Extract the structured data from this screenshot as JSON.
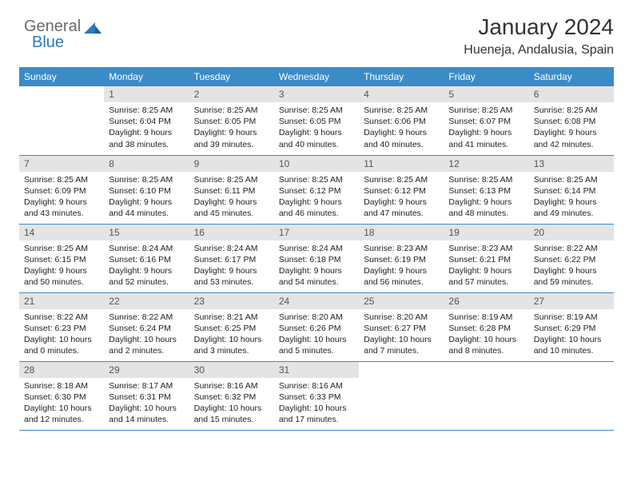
{
  "logo": {
    "general": "General",
    "blue": "Blue"
  },
  "header": {
    "title": "January 2024",
    "location": "Hueneja, Andalusia, Spain"
  },
  "dayNames": [
    "Sunday",
    "Monday",
    "Tuesday",
    "Wednesday",
    "Thursday",
    "Friday",
    "Saturday"
  ],
  "colors": {
    "headerBg": "#3b8bc6",
    "headerText": "#ffffff",
    "dayNumBg": "#e4e4e4",
    "ruleColor": "#3b8bc6",
    "logoBlue": "#2a7ab8",
    "logoGray": "#6b6b6b"
  },
  "weeks": [
    [
      {
        "n": "",
        "sunrise": "",
        "sunset": "",
        "daylight": ""
      },
      {
        "n": "1",
        "sunrise": "Sunrise: 8:25 AM",
        "sunset": "Sunset: 6:04 PM",
        "daylight": "Daylight: 9 hours and 38 minutes."
      },
      {
        "n": "2",
        "sunrise": "Sunrise: 8:25 AM",
        "sunset": "Sunset: 6:05 PM",
        "daylight": "Daylight: 9 hours and 39 minutes."
      },
      {
        "n": "3",
        "sunrise": "Sunrise: 8:25 AM",
        "sunset": "Sunset: 6:05 PM",
        "daylight": "Daylight: 9 hours and 40 minutes."
      },
      {
        "n": "4",
        "sunrise": "Sunrise: 8:25 AM",
        "sunset": "Sunset: 6:06 PM",
        "daylight": "Daylight: 9 hours and 40 minutes."
      },
      {
        "n": "5",
        "sunrise": "Sunrise: 8:25 AM",
        "sunset": "Sunset: 6:07 PM",
        "daylight": "Daylight: 9 hours and 41 minutes."
      },
      {
        "n": "6",
        "sunrise": "Sunrise: 8:25 AM",
        "sunset": "Sunset: 6:08 PM",
        "daylight": "Daylight: 9 hours and 42 minutes."
      }
    ],
    [
      {
        "n": "7",
        "sunrise": "Sunrise: 8:25 AM",
        "sunset": "Sunset: 6:09 PM",
        "daylight": "Daylight: 9 hours and 43 minutes."
      },
      {
        "n": "8",
        "sunrise": "Sunrise: 8:25 AM",
        "sunset": "Sunset: 6:10 PM",
        "daylight": "Daylight: 9 hours and 44 minutes."
      },
      {
        "n": "9",
        "sunrise": "Sunrise: 8:25 AM",
        "sunset": "Sunset: 6:11 PM",
        "daylight": "Daylight: 9 hours and 45 minutes."
      },
      {
        "n": "10",
        "sunrise": "Sunrise: 8:25 AM",
        "sunset": "Sunset: 6:12 PM",
        "daylight": "Daylight: 9 hours and 46 minutes."
      },
      {
        "n": "11",
        "sunrise": "Sunrise: 8:25 AM",
        "sunset": "Sunset: 6:12 PM",
        "daylight": "Daylight: 9 hours and 47 minutes."
      },
      {
        "n": "12",
        "sunrise": "Sunrise: 8:25 AM",
        "sunset": "Sunset: 6:13 PM",
        "daylight": "Daylight: 9 hours and 48 minutes."
      },
      {
        "n": "13",
        "sunrise": "Sunrise: 8:25 AM",
        "sunset": "Sunset: 6:14 PM",
        "daylight": "Daylight: 9 hours and 49 minutes."
      }
    ],
    [
      {
        "n": "14",
        "sunrise": "Sunrise: 8:25 AM",
        "sunset": "Sunset: 6:15 PM",
        "daylight": "Daylight: 9 hours and 50 minutes."
      },
      {
        "n": "15",
        "sunrise": "Sunrise: 8:24 AM",
        "sunset": "Sunset: 6:16 PM",
        "daylight": "Daylight: 9 hours and 52 minutes."
      },
      {
        "n": "16",
        "sunrise": "Sunrise: 8:24 AM",
        "sunset": "Sunset: 6:17 PM",
        "daylight": "Daylight: 9 hours and 53 minutes."
      },
      {
        "n": "17",
        "sunrise": "Sunrise: 8:24 AM",
        "sunset": "Sunset: 6:18 PM",
        "daylight": "Daylight: 9 hours and 54 minutes."
      },
      {
        "n": "18",
        "sunrise": "Sunrise: 8:23 AM",
        "sunset": "Sunset: 6:19 PM",
        "daylight": "Daylight: 9 hours and 56 minutes."
      },
      {
        "n": "19",
        "sunrise": "Sunrise: 8:23 AM",
        "sunset": "Sunset: 6:21 PM",
        "daylight": "Daylight: 9 hours and 57 minutes."
      },
      {
        "n": "20",
        "sunrise": "Sunrise: 8:22 AM",
        "sunset": "Sunset: 6:22 PM",
        "daylight": "Daylight: 9 hours and 59 minutes."
      }
    ],
    [
      {
        "n": "21",
        "sunrise": "Sunrise: 8:22 AM",
        "sunset": "Sunset: 6:23 PM",
        "daylight": "Daylight: 10 hours and 0 minutes."
      },
      {
        "n": "22",
        "sunrise": "Sunrise: 8:22 AM",
        "sunset": "Sunset: 6:24 PM",
        "daylight": "Daylight: 10 hours and 2 minutes."
      },
      {
        "n": "23",
        "sunrise": "Sunrise: 8:21 AM",
        "sunset": "Sunset: 6:25 PM",
        "daylight": "Daylight: 10 hours and 3 minutes."
      },
      {
        "n": "24",
        "sunrise": "Sunrise: 8:20 AM",
        "sunset": "Sunset: 6:26 PM",
        "daylight": "Daylight: 10 hours and 5 minutes."
      },
      {
        "n": "25",
        "sunrise": "Sunrise: 8:20 AM",
        "sunset": "Sunset: 6:27 PM",
        "daylight": "Daylight: 10 hours and 7 minutes."
      },
      {
        "n": "26",
        "sunrise": "Sunrise: 8:19 AM",
        "sunset": "Sunset: 6:28 PM",
        "daylight": "Daylight: 10 hours and 8 minutes."
      },
      {
        "n": "27",
        "sunrise": "Sunrise: 8:19 AM",
        "sunset": "Sunset: 6:29 PM",
        "daylight": "Daylight: 10 hours and 10 minutes."
      }
    ],
    [
      {
        "n": "28",
        "sunrise": "Sunrise: 8:18 AM",
        "sunset": "Sunset: 6:30 PM",
        "daylight": "Daylight: 10 hours and 12 minutes."
      },
      {
        "n": "29",
        "sunrise": "Sunrise: 8:17 AM",
        "sunset": "Sunset: 6:31 PM",
        "daylight": "Daylight: 10 hours and 14 minutes."
      },
      {
        "n": "30",
        "sunrise": "Sunrise: 8:16 AM",
        "sunset": "Sunset: 6:32 PM",
        "daylight": "Daylight: 10 hours and 15 minutes."
      },
      {
        "n": "31",
        "sunrise": "Sunrise: 8:16 AM",
        "sunset": "Sunset: 6:33 PM",
        "daylight": "Daylight: 10 hours and 17 minutes."
      },
      {
        "n": "",
        "sunrise": "",
        "sunset": "",
        "daylight": ""
      },
      {
        "n": "",
        "sunrise": "",
        "sunset": "",
        "daylight": ""
      },
      {
        "n": "",
        "sunrise": "",
        "sunset": "",
        "daylight": ""
      }
    ]
  ]
}
